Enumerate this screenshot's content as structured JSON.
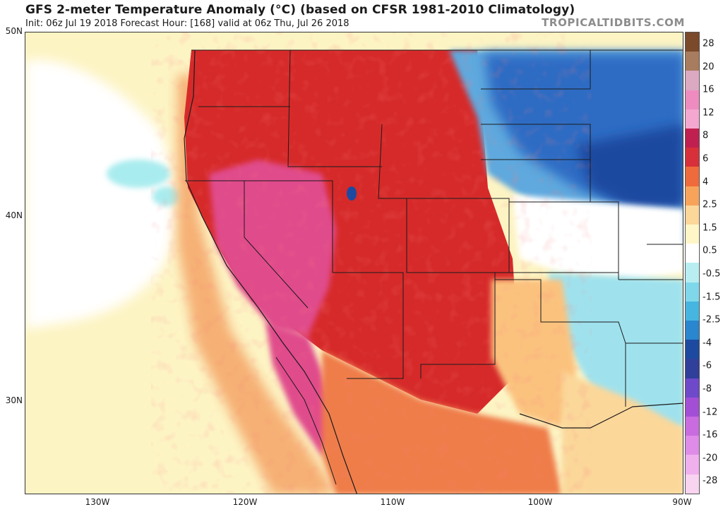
{
  "header": {
    "title": "GFS 2-meter Temperature Anomaly (°C) (based on CFSR 1981-2010 Climatology)",
    "subtitle": "Init: 06z Jul 19 2018   Forecast Hour: [168]   valid at 06z Thu, Jul 26 2018",
    "brand": "TROPICALTIDBITS.COM"
  },
  "map": {
    "lat_labels": [
      "50N",
      "40N",
      "30N"
    ],
    "lon_labels": [
      "130W",
      "120W",
      "110W",
      "100W",
      "90W"
    ],
    "colors": {
      "ocean_warm": "#fdf4c4",
      "pacific_neutral": "#ffffff",
      "hot": "#d62a2a",
      "very_hot": "#e04c8c",
      "cool": "#7fd3e6",
      "cold": "#2f6cc4",
      "very_cold": "#1d4aa0",
      "warm": "#f3a060",
      "mild": "#fbd79a"
    }
  },
  "colorbar": {
    "labels": [
      "28",
      "20",
      "16",
      "12",
      "8",
      "6",
      "4",
      "2.5",
      "1.5",
      "0.5",
      "-0.5",
      "-1.5",
      "-2.5",
      "-4",
      "-6",
      "-8",
      "-12",
      "-16",
      "-20",
      "-28"
    ],
    "colors": [
      "#7a4a2a",
      "#a87c5e",
      "#dba9c2",
      "#ee8cc0",
      "#f4a8d0",
      "#c02050",
      "#d8303a",
      "#ef6b3b",
      "#f7a35a",
      "#fbd79a",
      "#fff6c8",
      "#ffffff",
      "#b8eef2",
      "#7fd8ea",
      "#46b6e0",
      "#2a86cf",
      "#1d4aa0",
      "#2f3f9a",
      "#6e49c9",
      "#a24fd6",
      "#c86ce0",
      "#de8ce8",
      "#f0b0ee",
      "#f8d4f0"
    ]
  }
}
